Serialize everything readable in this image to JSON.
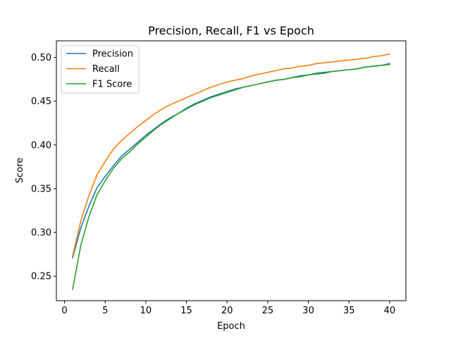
{
  "chart_data": {
    "type": "line",
    "title": "Precision, Recall, F1 vs Epoch",
    "xlabel": "Epoch",
    "ylabel": "Score",
    "xlim": [
      -1,
      42
    ],
    "ylim": [
      0.222,
      0.519
    ],
    "xticks": [
      0,
      5,
      10,
      15,
      20,
      25,
      30,
      35,
      40
    ],
    "yticks": [
      0.25,
      0.3,
      0.35,
      0.4,
      0.45,
      0.5
    ],
    "ytick_labels": [
      "0.25",
      "0.30",
      "0.35",
      "0.40",
      "0.45",
      "0.50"
    ],
    "grid": false,
    "legend_position": "top-left",
    "x": [
      1,
      2,
      3,
      4,
      5,
      6,
      7,
      8,
      9,
      10,
      11,
      12,
      13,
      14,
      15,
      16,
      17,
      18,
      19,
      20,
      21,
      22,
      23,
      24,
      25,
      26,
      27,
      28,
      29,
      30,
      31,
      32,
      33,
      34,
      35,
      36,
      37,
      38,
      39,
      40
    ],
    "series": [
      {
        "name": "Precision",
        "color": "#1f77b4",
        "values": [
          0.271,
          0.305,
          0.33,
          0.351,
          0.364,
          0.376,
          0.387,
          0.395,
          0.403,
          0.411,
          0.418,
          0.425,
          0.431,
          0.436,
          0.442,
          0.447,
          0.451,
          0.455,
          0.458,
          0.461,
          0.464,
          0.466,
          0.468,
          0.47,
          0.472,
          0.474,
          0.475,
          0.477,
          0.479,
          0.48,
          0.482,
          0.483,
          0.484,
          0.485,
          0.486,
          0.487,
          0.489,
          0.49,
          0.491,
          0.493
        ]
      },
      {
        "name": "Recall",
        "color": "#ff7f0e",
        "values": [
          0.273,
          0.313,
          0.342,
          0.366,
          0.381,
          0.395,
          0.405,
          0.413,
          0.421,
          0.428,
          0.435,
          0.441,
          0.446,
          0.45,
          0.454,
          0.458,
          0.462,
          0.466,
          0.469,
          0.472,
          0.474,
          0.476,
          0.479,
          0.481,
          0.483,
          0.485,
          0.487,
          0.488,
          0.49,
          0.491,
          0.493,
          0.494,
          0.495,
          0.496,
          0.497,
          0.498,
          0.499,
          0.501,
          0.502,
          0.504
        ]
      },
      {
        "name": "F1 Score",
        "color": "#2ca02c",
        "values": [
          0.235,
          0.285,
          0.318,
          0.343,
          0.359,
          0.373,
          0.384,
          0.392,
          0.401,
          0.409,
          0.417,
          0.424,
          0.43,
          0.436,
          0.441,
          0.446,
          0.45,
          0.454,
          0.457,
          0.46,
          0.463,
          0.466,
          0.468,
          0.47,
          0.472,
          0.474,
          0.475,
          0.477,
          0.478,
          0.48,
          0.481,
          0.482,
          0.484,
          0.485,
          0.486,
          0.487,
          0.489,
          0.49,
          0.491,
          0.492
        ]
      }
    ]
  }
}
